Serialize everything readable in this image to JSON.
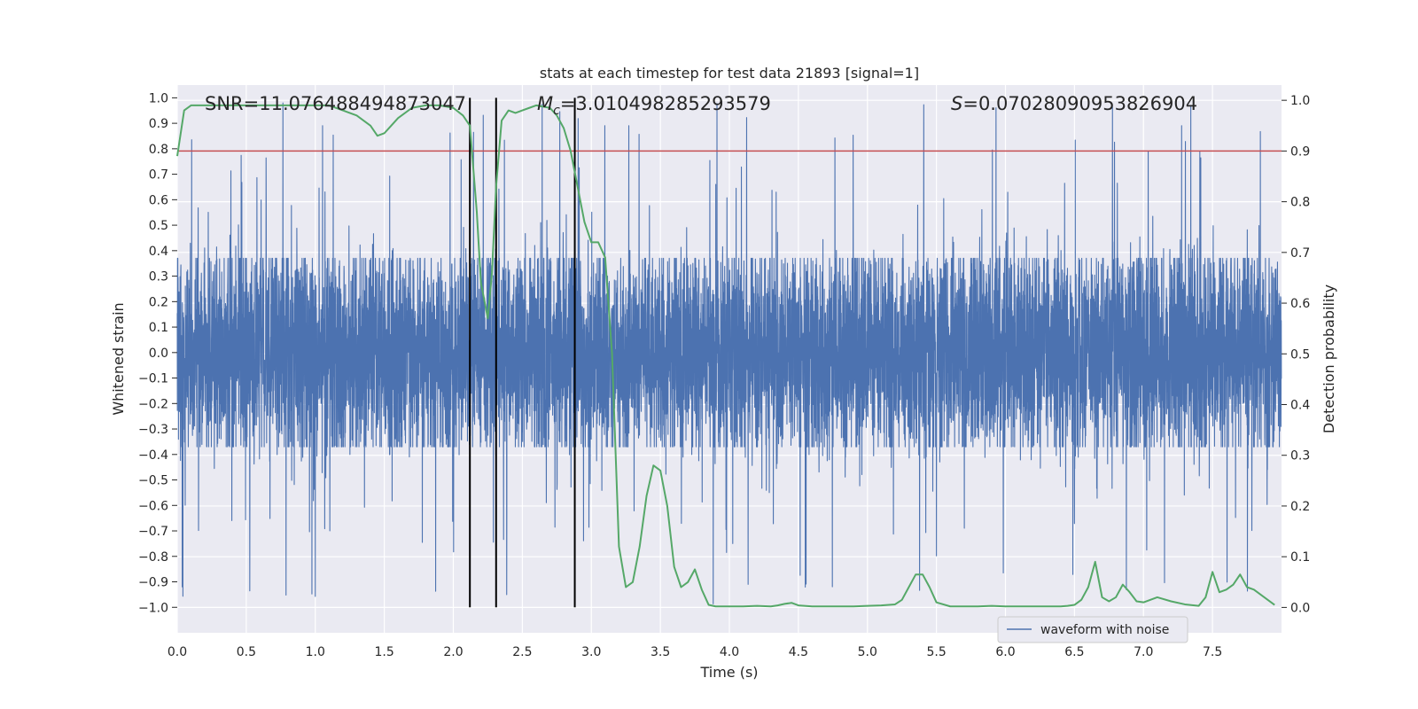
{
  "chart_data": {
    "type": "line",
    "title": "stats at each timestep for test data 21893 [signal=1]",
    "xlabel": "Time (s)",
    "ylabel_left": "Whitened strain",
    "ylabel_right": "Detection probability",
    "xlim": [
      0.0,
      8.0
    ],
    "ylim_left": [
      -1.1,
      1.05
    ],
    "ylim_right": [
      -0.05,
      1.03
    ],
    "x_ticks": [
      0.0,
      0.5,
      1.0,
      1.5,
      2.0,
      2.5,
      3.0,
      3.5,
      4.0,
      4.5,
      5.0,
      5.5,
      6.0,
      6.5,
      7.0,
      7.5
    ],
    "x_tick_labels": [
      "0.0",
      "0.5",
      "1.0",
      "1.5",
      "2.0",
      "2.5",
      "3.0",
      "3.5",
      "4.0",
      "4.5",
      "5.0",
      "5.5",
      "6.0",
      "6.5",
      "7.0",
      "7.5"
    ],
    "y_left_ticks": [
      1.0,
      0.9,
      0.8,
      0.7,
      0.6,
      0.5,
      0.4,
      0.3,
      0.2,
      0.1,
      0.0,
      -0.1,
      -0.2,
      -0.3,
      -0.4,
      -0.5,
      -0.6,
      -0.7,
      -0.8,
      -0.9,
      -1.0
    ],
    "y_left_tick_labels": [
      "1.0",
      "0.9",
      "0.8",
      "0.7",
      "0.6",
      "0.5",
      "0.4",
      "0.3",
      "0.2",
      "0.1",
      "0.0",
      "−0.1",
      "−0.2",
      "−0.3",
      "−0.4",
      "−0.5",
      "−0.6",
      "−0.7",
      "−0.8",
      "−0.9",
      "−1.0"
    ],
    "y_right_ticks": [
      1.0,
      0.9,
      0.8,
      0.7,
      0.6,
      0.5,
      0.4,
      0.3,
      0.2,
      0.1,
      0.0
    ],
    "y_right_tick_labels": [
      "1.0",
      "0.9",
      "0.8",
      "0.7",
      "0.6",
      "0.5",
      "0.4",
      "0.3",
      "0.2",
      "0.1",
      "0.0"
    ],
    "annotations": {
      "snr": "SNR=11.076488494873047",
      "mc_symbol": "M",
      "mc_sub": "c",
      "mc_value": "=3.010498285293579",
      "s_symbol": "S",
      "s_value": "=0.07028090953826904"
    },
    "threshold_right": 0.9,
    "vertical_lines_x": [
      2.12,
      2.31,
      2.88
    ],
    "vertical_lines_yrange_left": [
      -1.0,
      1.0
    ],
    "grid": true,
    "legend": {
      "position": "lower-right",
      "entries": [
        "waveform with noise"
      ]
    },
    "colors": {
      "waveform": "#4c72b0",
      "probability": "#55a868",
      "threshold": "#c44e52",
      "vlines": "#000000",
      "background": "#eaeaf2",
      "grid": "#ffffff"
    },
    "series": [
      {
        "name": "waveform with noise",
        "kind": "noise",
        "samples": 8192,
        "typical_amplitude": 0.37,
        "spike_amplitude_range": [
          0.4,
          0.99
        ]
      },
      {
        "name": "",
        "kind": "line",
        "axis": "right",
        "x": [
          0.0,
          0.05,
          0.1,
          0.2,
          0.4,
          0.6,
          0.8,
          1.0,
          1.1,
          1.2,
          1.3,
          1.4,
          1.45,
          1.5,
          1.55,
          1.6,
          1.7,
          1.8,
          1.9,
          2.0,
          2.07,
          2.12,
          2.17,
          2.2,
          2.25,
          2.28,
          2.31,
          2.35,
          2.4,
          2.45,
          2.5,
          2.55,
          2.6,
          2.7,
          2.75,
          2.8,
          2.85,
          2.9,
          2.95,
          3.0,
          3.05,
          3.1,
          3.15,
          3.2,
          3.25,
          3.3,
          3.35,
          3.4,
          3.45,
          3.5,
          3.55,
          3.6,
          3.65,
          3.7,
          3.75,
          3.8,
          3.85,
          3.9,
          4.0,
          4.1,
          4.2,
          4.3,
          4.35,
          4.4,
          4.45,
          4.5,
          4.6,
          4.7,
          4.8,
          4.9,
          5.0,
          5.1,
          5.2,
          5.25,
          5.3,
          5.35,
          5.4,
          5.45,
          5.5,
          5.6,
          5.7,
          5.8,
          5.9,
          6.0,
          6.1,
          6.2,
          6.3,
          6.4,
          6.45,
          6.5,
          6.55,
          6.6,
          6.65,
          6.7,
          6.75,
          6.8,
          6.85,
          6.9,
          6.95,
          7.0,
          7.05,
          7.1,
          7.2,
          7.3,
          7.4,
          7.45,
          7.5,
          7.55,
          7.6,
          7.65,
          7.7,
          7.75,
          7.8,
          7.85,
          7.9,
          7.95
        ],
        "y": [
          0.89,
          0.98,
          0.99,
          0.99,
          0.99,
          0.99,
          0.99,
          0.99,
          0.99,
          0.98,
          0.97,
          0.95,
          0.93,
          0.935,
          0.95,
          0.965,
          0.985,
          0.99,
          0.99,
          0.985,
          0.97,
          0.95,
          0.78,
          0.64,
          0.57,
          0.66,
          0.83,
          0.96,
          0.98,
          0.975,
          0.98,
          0.985,
          0.99,
          0.985,
          0.97,
          0.945,
          0.9,
          0.83,
          0.76,
          0.72,
          0.72,
          0.69,
          0.5,
          0.12,
          0.04,
          0.05,
          0.12,
          0.22,
          0.28,
          0.27,
          0.2,
          0.08,
          0.04,
          0.05,
          0.075,
          0.035,
          0.005,
          0.002,
          0.002,
          0.002,
          0.003,
          0.002,
          0.004,
          0.007,
          0.009,
          0.004,
          0.002,
          0.002,
          0.002,
          0.002,
          0.003,
          0.004,
          0.006,
          0.015,
          0.04,
          0.065,
          0.065,
          0.04,
          0.01,
          0.002,
          0.002,
          0.002,
          0.003,
          0.002,
          0.002,
          0.002,
          0.002,
          0.002,
          0.003,
          0.005,
          0.015,
          0.04,
          0.09,
          0.02,
          0.012,
          0.02,
          0.045,
          0.03,
          0.012,
          0.01,
          0.015,
          0.02,
          0.012,
          0.006,
          0.003,
          0.02,
          0.07,
          0.03,
          0.035,
          0.045,
          0.065,
          0.04,
          0.035,
          0.025,
          0.015,
          0.005
        ]
      }
    ]
  }
}
